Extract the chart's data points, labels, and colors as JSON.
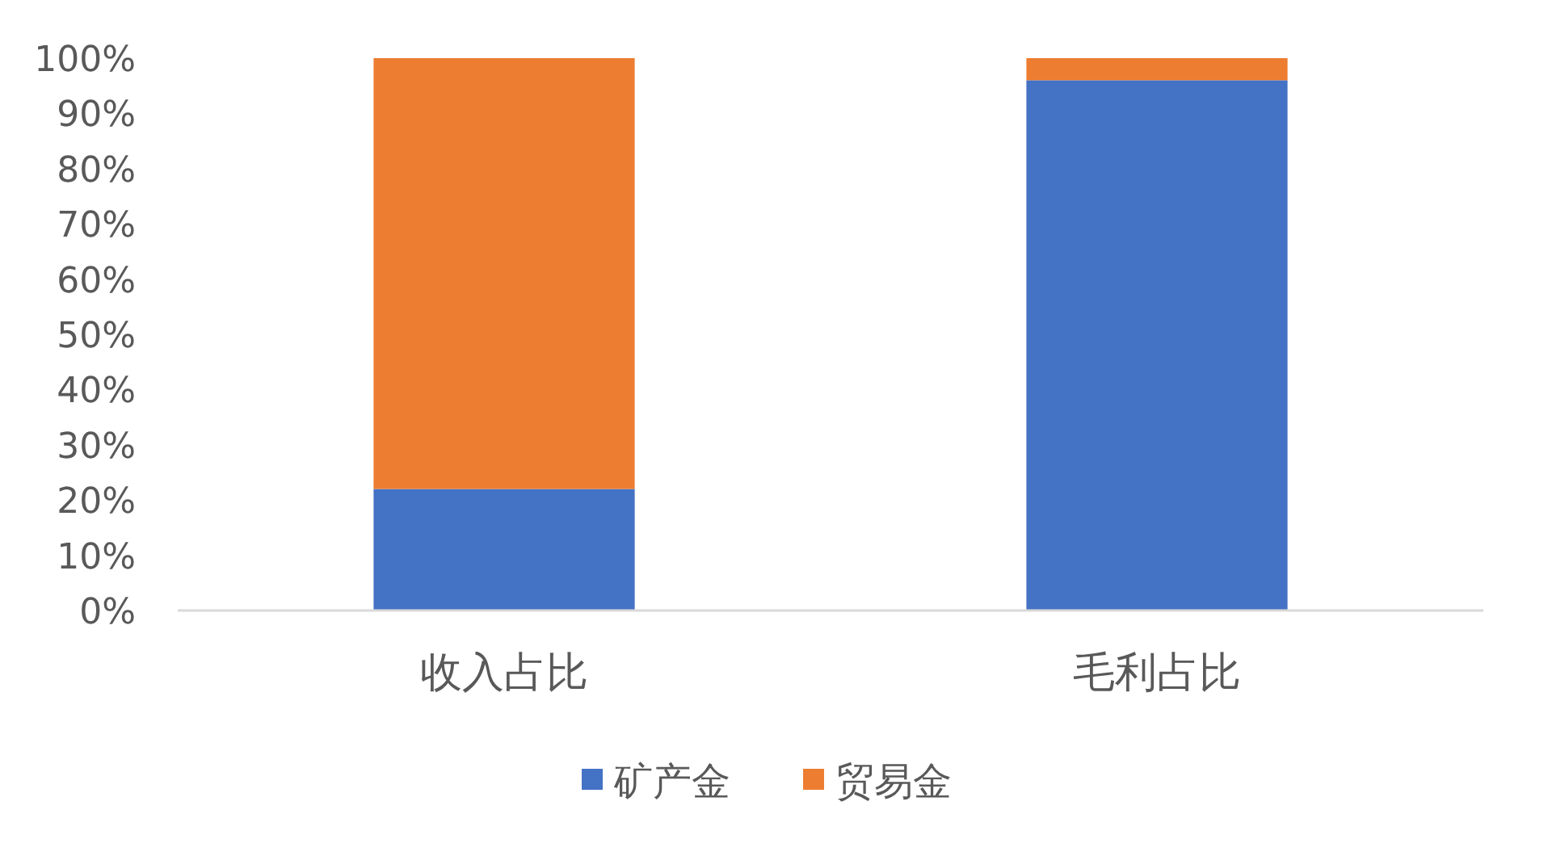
{
  "chart_data": {
    "type": "bar",
    "stacked": true,
    "categories": [
      "收入占比",
      "毛利占比"
    ],
    "series": [
      {
        "name": "矿产金",
        "color": "#4472c4",
        "values": [
          22,
          96
        ]
      },
      {
        "name": "贸易金",
        "color": "#ed7d31",
        "values": [
          78,
          4
        ]
      }
    ],
    "ylim": [
      0,
      100
    ],
    "yticks": [
      {
        "value": 0,
        "label": "0%"
      },
      {
        "value": 10,
        "label": "10%"
      },
      {
        "value": 20,
        "label": "20%"
      },
      {
        "value": 30,
        "label": "30%"
      },
      {
        "value": 40,
        "label": "40%"
      },
      {
        "value": 50,
        "label": "50%"
      },
      {
        "value": 60,
        "label": "60%"
      },
      {
        "value": 70,
        "label": "70%"
      },
      {
        "value": 80,
        "label": "80%"
      },
      {
        "value": 90,
        "label": "90%"
      },
      {
        "value": 100,
        "label": "100%"
      }
    ],
    "grid": false,
    "legend": "bottom"
  }
}
